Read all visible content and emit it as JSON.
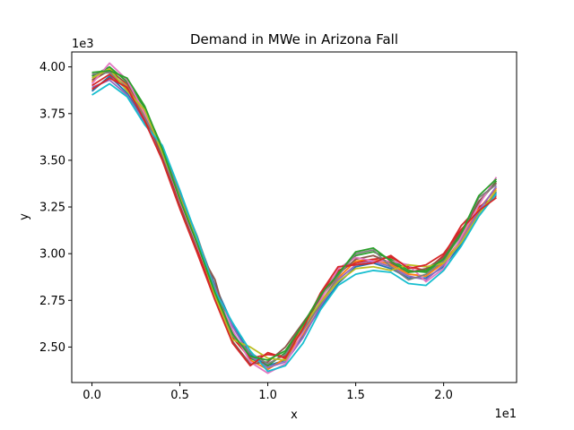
{
  "chart_data": {
    "type": "line",
    "title": "Demand in MWe in Arizona Fall",
    "xlabel": "x",
    "ylabel": "y",
    "x_offset_text": "1e1",
    "y_offset_text": "1e3",
    "xlim": [
      -1.15,
      24.15
    ],
    "ylim": [
      2.31,
      4.08
    ],
    "x_ticks": [
      0,
      5,
      10,
      15,
      20
    ],
    "x_tick_labels": [
      "0.0",
      "0.5",
      "1.0",
      "1.5",
      "2.0"
    ],
    "y_ticks": [
      2.5,
      2.75,
      3.0,
      3.25,
      3.5,
      3.75,
      4.0
    ],
    "y_tick_labels": [
      "2.50",
      "2.75",
      "3.00",
      "3.25",
      "3.50",
      "3.75",
      "4.00"
    ],
    "grid": false,
    "legend": "none",
    "x": [
      0,
      1,
      2,
      3,
      4,
      5,
      6,
      7,
      8,
      9,
      10,
      11,
      12,
      13,
      14,
      15,
      16,
      17,
      18,
      19,
      20,
      21,
      22,
      23
    ],
    "series": [
      {
        "color": "#1f77b4",
        "values": [
          3.87,
          3.95,
          3.86,
          3.71,
          3.55,
          3.3,
          3.08,
          2.83,
          2.62,
          2.46,
          2.4,
          2.43,
          2.56,
          2.71,
          2.84,
          2.93,
          2.95,
          2.92,
          2.87,
          2.87,
          2.93,
          3.05,
          3.22,
          3.33
        ]
      },
      {
        "color": "#ff7f0e",
        "values": [
          3.92,
          3.99,
          3.9,
          3.74,
          3.54,
          3.27,
          3.05,
          2.78,
          2.57,
          2.43,
          2.38,
          2.44,
          2.57,
          2.74,
          2.87,
          2.96,
          2.97,
          2.94,
          2.89,
          2.88,
          2.95,
          3.08,
          3.24,
          3.35
        ]
      },
      {
        "color": "#2ca02c",
        "values": [
          3.95,
          4.0,
          3.92,
          3.78,
          3.57,
          3.31,
          3.06,
          2.8,
          2.58,
          2.44,
          2.4,
          2.47,
          2.6,
          2.77,
          2.9,
          2.99,
          3.01,
          2.97,
          2.91,
          2.9,
          2.97,
          3.1,
          3.27,
          3.39
        ]
      },
      {
        "color": "#d62728",
        "values": [
          3.9,
          3.96,
          3.88,
          3.72,
          3.52,
          3.26,
          3.02,
          2.76,
          2.55,
          2.44,
          2.46,
          2.45,
          2.62,
          2.78,
          2.91,
          2.95,
          2.97,
          2.98,
          2.93,
          2.91,
          2.99,
          3.15,
          3.25,
          3.31
        ]
      },
      {
        "color": "#9467bd",
        "values": [
          3.89,
          3.93,
          3.85,
          3.7,
          3.53,
          3.29,
          3.07,
          2.82,
          2.61,
          2.45,
          2.39,
          2.42,
          2.55,
          2.72,
          2.86,
          2.94,
          2.96,
          2.93,
          2.88,
          2.86,
          2.94,
          3.07,
          3.23,
          3.36
        ]
      },
      {
        "color": "#8c564b",
        "values": [
          3.93,
          3.98,
          3.91,
          3.76,
          3.51,
          3.25,
          3.03,
          2.86,
          2.53,
          2.41,
          2.42,
          2.5,
          2.63,
          2.76,
          2.89,
          2.97,
          2.99,
          2.95,
          2.9,
          2.92,
          2.98,
          3.12,
          3.28,
          3.38
        ]
      },
      {
        "color": "#e377c2",
        "values": [
          3.91,
          4.02,
          3.93,
          3.75,
          3.56,
          3.28,
          3.04,
          2.79,
          2.59,
          2.42,
          2.36,
          2.41,
          2.58,
          2.75,
          2.92,
          2.98,
          2.96,
          2.96,
          2.94,
          2.85,
          2.92,
          3.09,
          3.26,
          3.41
        ]
      },
      {
        "color": "#7f7f7f",
        "values": [
          3.96,
          3.97,
          3.89,
          3.73,
          3.55,
          3.32,
          3.09,
          2.81,
          2.56,
          2.47,
          2.41,
          2.46,
          2.59,
          2.73,
          2.88,
          3.0,
          3.02,
          2.93,
          2.86,
          2.89,
          2.96,
          3.11,
          3.3,
          3.37
        ]
      },
      {
        "color": "#bcbd22",
        "values": [
          3.94,
          3.99,
          3.87,
          3.77,
          3.54,
          3.3,
          3.06,
          2.77,
          2.54,
          2.5,
          2.44,
          2.43,
          2.61,
          2.74,
          2.85,
          2.92,
          2.93,
          2.91,
          2.94,
          2.93,
          2.95,
          3.06,
          3.21,
          3.34
        ]
      },
      {
        "color": "#17becf",
        "values": [
          3.85,
          3.91,
          3.84,
          3.69,
          3.58,
          3.34,
          3.08,
          2.8,
          2.63,
          2.48,
          2.37,
          2.4,
          2.52,
          2.7,
          2.83,
          2.89,
          2.91,
          2.9,
          2.84,
          2.83,
          2.91,
          3.04,
          3.2,
          3.32
        ]
      },
      {
        "color": "#d62728",
        "values": [
          3.88,
          3.94,
          3.89,
          3.71,
          3.5,
          3.24,
          3.0,
          2.75,
          2.52,
          2.4,
          2.47,
          2.44,
          2.6,
          2.79,
          2.93,
          2.94,
          2.95,
          2.99,
          2.92,
          2.94,
          3.0,
          3.13,
          3.23,
          3.3
        ]
      },
      {
        "color": "#2ca02c",
        "values": [
          3.97,
          3.98,
          3.94,
          3.79,
          3.56,
          3.29,
          3.05,
          2.79,
          2.57,
          2.45,
          2.43,
          2.48,
          2.62,
          2.78,
          2.89,
          3.01,
          3.03,
          2.96,
          2.9,
          2.91,
          2.97,
          3.11,
          3.31,
          3.4
        ]
      }
    ]
  }
}
